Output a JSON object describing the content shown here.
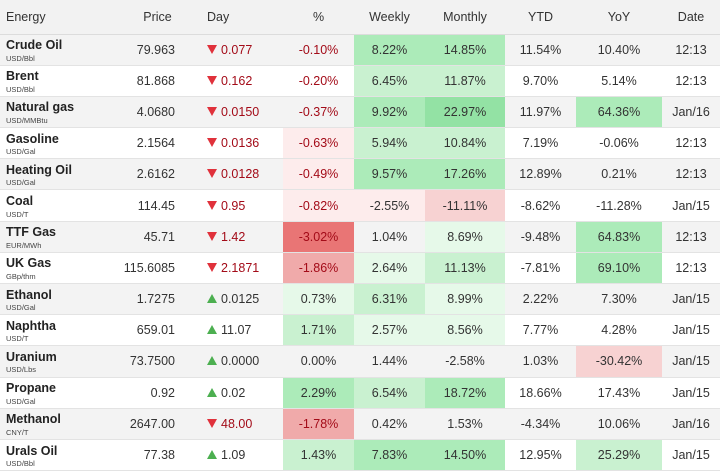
{
  "headers": {
    "name": "Energy",
    "price": "Price",
    "day": "Day",
    "pct": "%",
    "weekly": "Weekly",
    "monthly": "Monthly",
    "ytd": "YTD",
    "yoy": "YoY",
    "date": "Date"
  },
  "rows": [
    {
      "name": "Crude Oil",
      "unit": "USD/Bbl",
      "price": "79.963",
      "dir": "down",
      "day": "0.077",
      "pct": "-0.10%",
      "weekly": "8.22%",
      "monthly": "14.85%",
      "ytd": "11.54%",
      "yoy": "10.40%",
      "date": "12:13"
    },
    {
      "name": "Brent",
      "unit": "USD/Bbl",
      "price": "81.868",
      "dir": "down",
      "day": "0.162",
      "pct": "-0.20%",
      "weekly": "6.45%",
      "monthly": "11.87%",
      "ytd": "9.70%",
      "yoy": "5.14%",
      "date": "12:13"
    },
    {
      "name": "Natural gas",
      "unit": "USD/MMBtu",
      "price": "4.0680",
      "dir": "down",
      "day": "0.0150",
      "pct": "-0.37%",
      "weekly": "9.92%",
      "monthly": "22.97%",
      "ytd": "11.97%",
      "yoy": "64.36%",
      "date": "Jan/16"
    },
    {
      "name": "Gasoline",
      "unit": "USD/Gal",
      "price": "2.1564",
      "dir": "down",
      "day": "0.0136",
      "pct": "-0.63%",
      "weekly": "5.94%",
      "monthly": "10.84%",
      "ytd": "7.19%",
      "yoy": "-0.06%",
      "date": "12:13"
    },
    {
      "name": "Heating Oil",
      "unit": "USD/Gal",
      "price": "2.6162",
      "dir": "down",
      "day": "0.0128",
      "pct": "-0.49%",
      "weekly": "9.57%",
      "monthly": "17.26%",
      "ytd": "12.89%",
      "yoy": "0.21%",
      "date": "12:13"
    },
    {
      "name": "Coal",
      "unit": "USD/T",
      "price": "114.45",
      "dir": "down",
      "day": "0.95",
      "pct": "-0.82%",
      "weekly": "-2.55%",
      "monthly": "-11.11%",
      "ytd": "-8.62%",
      "yoy": "-11.28%",
      "date": "Jan/15"
    },
    {
      "name": "TTF Gas",
      "unit": "EUR/MWh",
      "price": "45.71",
      "dir": "down",
      "day": "1.42",
      "pct": "-3.02%",
      "weekly": "1.04%",
      "monthly": "8.69%",
      "ytd": "-9.48%",
      "yoy": "64.83%",
      "date": "12:13"
    },
    {
      "name": "UK Gas",
      "unit": "GBp/thm",
      "price": "115.6085",
      "dir": "down",
      "day": "2.1871",
      "pct": "-1.86%",
      "weekly": "2.64%",
      "monthly": "11.13%",
      "ytd": "-7.81%",
      "yoy": "69.10%",
      "date": "12:13"
    },
    {
      "name": "Ethanol",
      "unit": "USD/Gal",
      "price": "1.7275",
      "dir": "up",
      "day": "0.0125",
      "pct": "0.73%",
      "weekly": "6.31%",
      "monthly": "8.99%",
      "ytd": "2.22%",
      "yoy": "7.30%",
      "date": "Jan/15"
    },
    {
      "name": "Naphtha",
      "unit": "USD/T",
      "price": "659.01",
      "dir": "up",
      "day": "11.07",
      "pct": "1.71%",
      "weekly": "2.57%",
      "monthly": "8.56%",
      "ytd": "7.77%",
      "yoy": "4.28%",
      "date": "Jan/15"
    },
    {
      "name": "Uranium",
      "unit": "USD/Lbs",
      "price": "73.7500",
      "dir": "up",
      "day": "0.0000",
      "pct": "0.00%",
      "weekly": "1.44%",
      "monthly": "-2.58%",
      "ytd": "1.03%",
      "yoy": "-30.42%",
      "date": "Jan/15"
    },
    {
      "name": "Propane",
      "unit": "USD/Gal",
      "price": "0.92",
      "dir": "up",
      "day": "0.02",
      "pct": "2.29%",
      "weekly": "6.54%",
      "monthly": "18.72%",
      "ytd": "18.66%",
      "yoy": "17.43%",
      "date": "Jan/15"
    },
    {
      "name": "Methanol",
      "unit": "CNY/T",
      "price": "2647.00",
      "dir": "down",
      "day": "48.00",
      "pct": "-1.78%",
      "weekly": "0.42%",
      "monthly": "1.53%",
      "ytd": "-4.34%",
      "yoy": "10.06%",
      "date": "Jan/16"
    },
    {
      "name": "Urals Oil",
      "unit": "USD/Bbl",
      "price": "77.38",
      "dir": "up",
      "day": "1.09",
      "pct": "1.43%",
      "weekly": "7.83%",
      "monthly": "14.50%",
      "ytd": "12.95%",
      "yoy": "25.29%",
      "date": "Jan/15"
    }
  ],
  "colors": {
    "down_triangle": "#e0313b",
    "up_triangle": "#4caf50",
    "down_text": "#a30b18",
    "header_bg": "#f2f2f2"
  },
  "icons": {
    "down": "down-triangle-icon",
    "up": "up-triangle-icon"
  }
}
